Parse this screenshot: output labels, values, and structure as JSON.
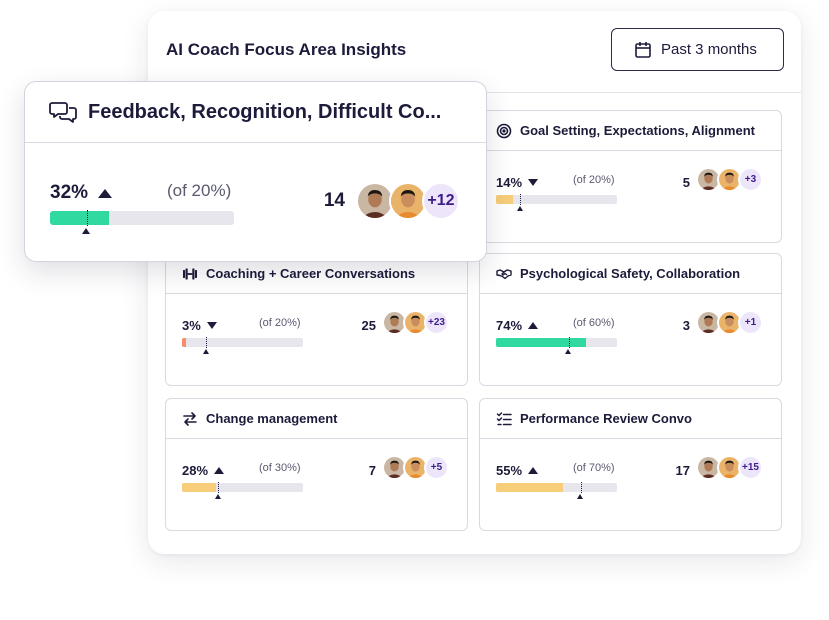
{
  "panel": {
    "title": "AI Coach Focus Area Insights",
    "date_button_label": "Past 3 months"
  },
  "featured": {
    "title": "Feedback, Recognition, Difficult Co...",
    "percent_label": "32%",
    "trend": "up",
    "of_label": "(of 20%)",
    "value": 0.32,
    "target": 0.2,
    "bar_color": "#2fd9a0",
    "count": "14",
    "more": "+12"
  },
  "cards": [
    {
      "title": "Goal Setting, Expectations, Alignment",
      "icon": "target-icon",
      "percent_label": "14%",
      "trend": "down",
      "of_label": "(of 20%)",
      "value": 0.14,
      "target": 0.2,
      "bar_color": "#f7cd7a",
      "count": "5",
      "more": "+3"
    },
    {
      "title": "Coaching + Career Conversations",
      "icon": "dumbbell-icon",
      "percent_label": "3%",
      "trend": "down",
      "of_label": "(of 20%)",
      "value": 0.03,
      "target": 0.2,
      "bar_color": "#f98a6b",
      "count": "25",
      "more": "+23"
    },
    {
      "title": "Psychological Safety, Collaboration",
      "icon": "handshake-icon",
      "percent_label": "74%",
      "trend": "up",
      "of_label": "(of 60%)",
      "value": 0.74,
      "target": 0.6,
      "bar_color": "#2fd9a0",
      "count": "3",
      "more": "+1"
    },
    {
      "title": "Change management",
      "icon": "arrows-exchange-icon",
      "percent_label": "28%",
      "trend": "up",
      "of_label": "(of 30%)",
      "value": 0.28,
      "target": 0.3,
      "bar_color": "#f7cd7a",
      "count": "7",
      "more": "+5"
    },
    {
      "title": "Performance Review Convo",
      "icon": "checklist-icon",
      "percent_label": "55%",
      "trend": "up",
      "of_label": "(of 70%)",
      "value": 0.55,
      "target": 0.7,
      "bar_color": "#f7cd7a",
      "count": "17",
      "more": "+15"
    }
  ]
}
